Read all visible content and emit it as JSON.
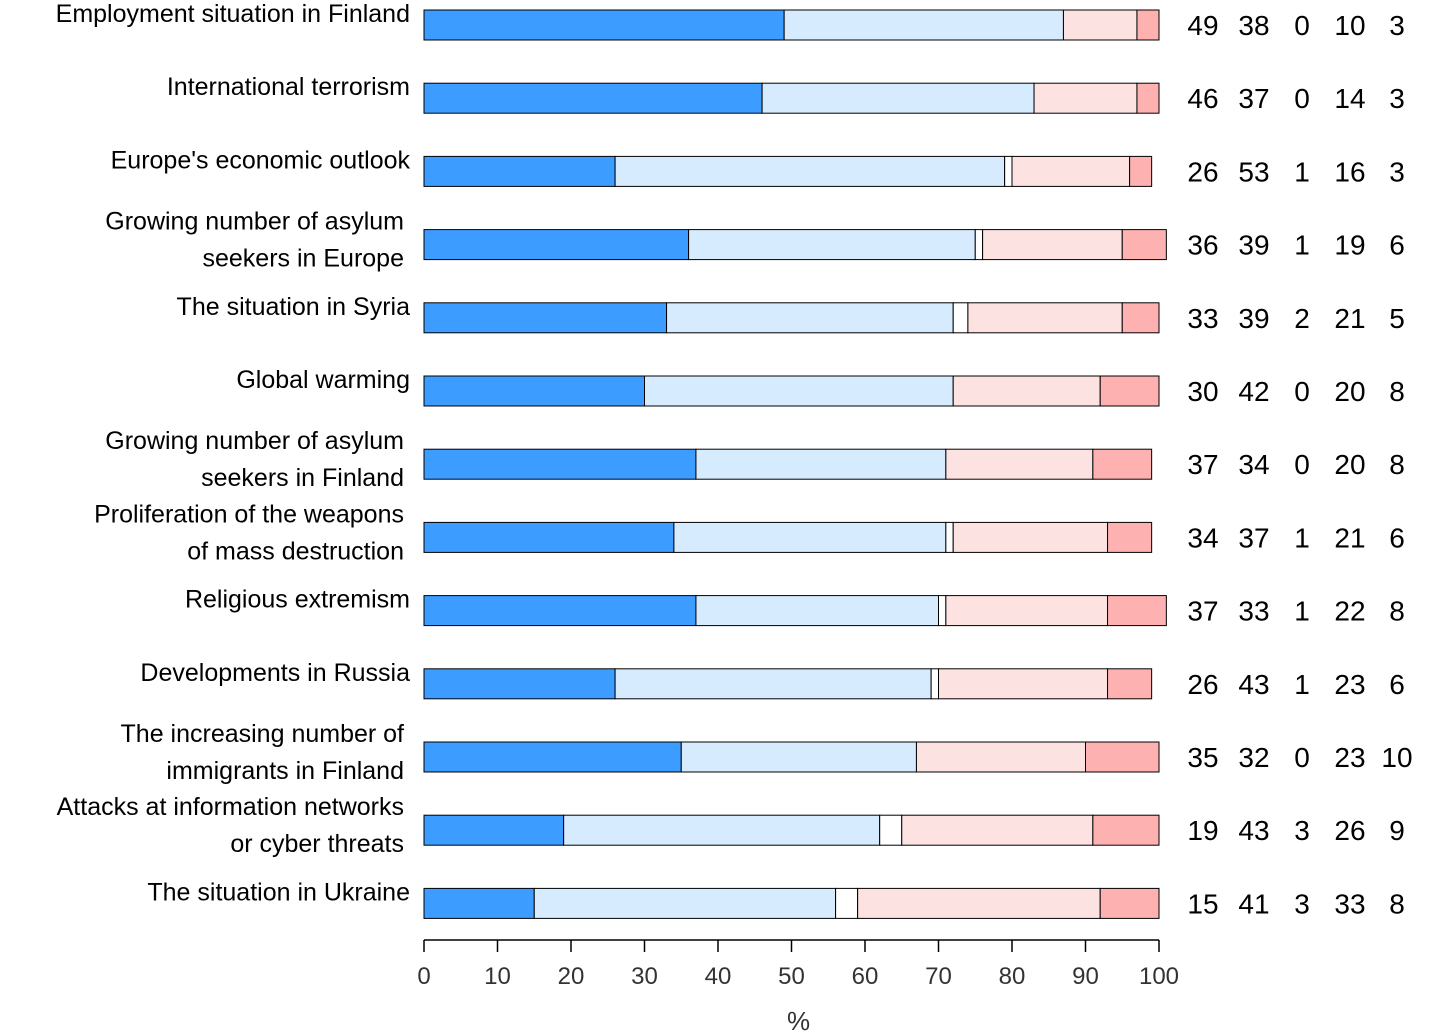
{
  "chart_data": {
    "type": "bar",
    "orientation": "horizontal",
    "stacked": true,
    "xlabel": "%",
    "xlim": [
      0,
      100
    ],
    "xticks": [
      0,
      10,
      20,
      30,
      40,
      50,
      60,
      70,
      80,
      90,
      100
    ],
    "colors": [
      "#3d9cff",
      "#d6ebfd",
      "#ffffff",
      "#fde2e2",
      "#fdb1b1"
    ],
    "categories": [
      [
        "Employment situation in Finland"
      ],
      [
        "International terrorism"
      ],
      [
        "Europe's economic outlook"
      ],
      [
        "Growing number of asylum",
        "seekers in Europe"
      ],
      [
        "The situation in Syria"
      ],
      [
        "Global warming"
      ],
      [
        "Growing number of asylum",
        "seekers in Finland"
      ],
      [
        "Proliferation of the weapons",
        "of mass destruction"
      ],
      [
        "Religious extremism"
      ],
      [
        "Developments in Russia"
      ],
      [
        "The increasing number of",
        "immigrants in Finland"
      ],
      [
        "Attacks at information networks",
        "or cyber threats"
      ],
      [
        "The situation in Ukraine"
      ]
    ],
    "series": [
      {
        "values": [
          49,
          46,
          26,
          36,
          33,
          30,
          37,
          34,
          37,
          26,
          35,
          19,
          15
        ]
      },
      {
        "values": [
          38,
          37,
          53,
          39,
          39,
          42,
          34,
          37,
          33,
          43,
          32,
          43,
          41
        ]
      },
      {
        "values": [
          0,
          0,
          1,
          1,
          2,
          0,
          0,
          1,
          1,
          1,
          0,
          3,
          3
        ]
      },
      {
        "values": [
          10,
          14,
          16,
          19,
          21,
          20,
          20,
          21,
          22,
          23,
          23,
          26,
          33
        ]
      },
      {
        "values": [
          3,
          3,
          3,
          6,
          5,
          8,
          8,
          6,
          8,
          6,
          10,
          9,
          8
        ]
      }
    ]
  }
}
